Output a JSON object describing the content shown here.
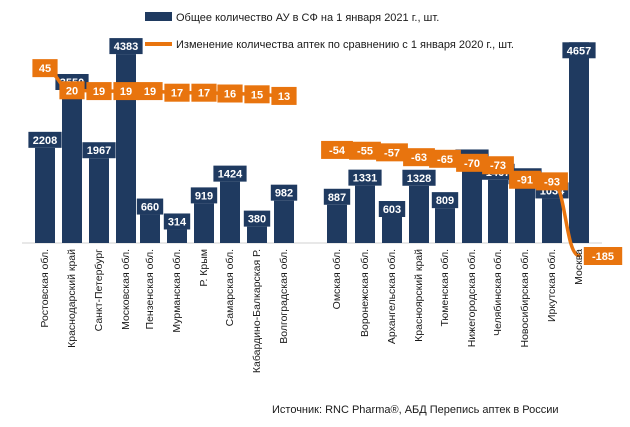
{
  "chart_data": {
    "type": "bar",
    "categories": [
      "Ростовская обл.",
      "Краснодарский край",
      "Санкт-Петербург",
      "Московская обл.",
      "Пензенская обл.",
      "Мурманская обл.",
      "Р. Крым",
      "Самарская обл.",
      "Кабардино-Балкарская Р.",
      "Волгоградская обл.",
      "Омская обл.",
      "Воронежская обл.",
      "Архангельская обл.",
      "Красноярский край",
      "Тюменская обл.",
      "Нижегородская обл.",
      "Челябинская обл.",
      "Новосибирская обл.",
      "Иркутская обл.",
      "Москва"
    ],
    "series": [
      {
        "name": "Общее количество АУ в СФ на 1 января 2021 г., шт.",
        "type": "bar",
        "color": "#1f3a60",
        "values": [
          2208,
          3550,
          1967,
          4383,
          660,
          314,
          919,
          1424,
          380,
          982,
          887,
          1331,
          603,
          1328,
          809,
          1799,
          1467,
          1363,
          1034,
          4657
        ]
      },
      {
        "name": "Изменение количества аптек по сравнению с 1 января 2020 г., шт.",
        "type": "line",
        "color": "#e8740e",
        "values": [
          45,
          20,
          19,
          19,
          19,
          17,
          17,
          16,
          15,
          13,
          -54,
          -55,
          -57,
          -63,
          -65,
          -70,
          -73,
          -91,
          -93,
          -185
        ]
      }
    ],
    "source": "Источник: RNC Pharma®, АБД Перепись аптек в России"
  }
}
